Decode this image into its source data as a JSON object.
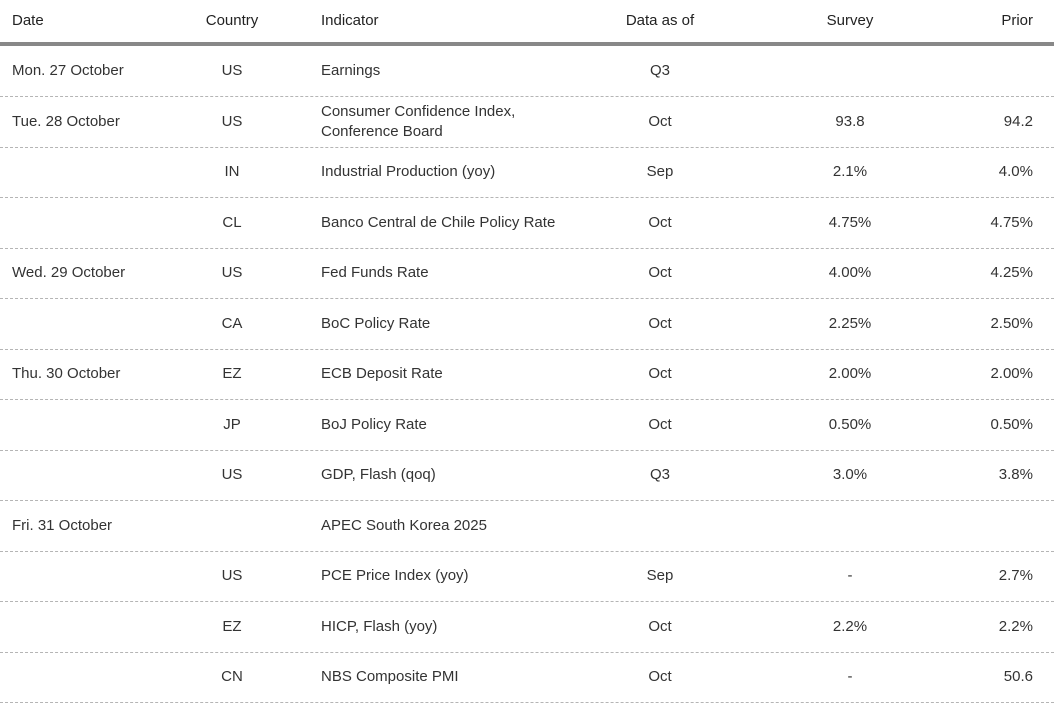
{
  "table": {
    "header": [
      "Date",
      "Country",
      "Indicator",
      "Data as of",
      "Survey",
      "Prior"
    ],
    "rows": [
      [
        "Mon. 27 October",
        "US",
        "Earnings",
        "Q3",
        null,
        null
      ],
      [
        "Tue. 28 October",
        "US",
        "Consumer Confidence Index,\nConference Board",
        "Oct",
        "93.8",
        "94.2"
      ],
      [
        null,
        "IN",
        "Industrial Production (yoy)",
        "Sep",
        "2.1%",
        "4.0%"
      ],
      [
        null,
        "CL",
        "Banco Central de Chile Policy Rate",
        "Oct",
        "4.75%",
        "4.75%"
      ],
      [
        "Wed. 29 October",
        "US",
        "Fed Funds Rate",
        "Oct",
        "4.00%",
        "4.25%"
      ],
      [
        null,
        "CA",
        "BoC Policy Rate",
        "Oct",
        "2.25%",
        "2.50%"
      ],
      [
        "Thu. 30 October",
        "EZ",
        "ECB Deposit Rate",
        "Oct",
        "2.00%",
        "2.00%"
      ],
      [
        null,
        "JP",
        "BoJ Policy Rate",
        "Oct",
        "0.50%",
        "0.50%"
      ],
      [
        null,
        "US",
        "GDP, Flash (qoq)",
        "Q3",
        "3.0%",
        "3.8%"
      ],
      [
        "Fri. 31 October",
        null,
        "APEC South Korea 2025",
        null,
        null,
        null
      ],
      [
        null,
        "US",
        "PCE Price Index (yoy)",
        "Sep",
        "-",
        "2.7%"
      ],
      [
        null,
        "EZ",
        "HICP, Flash (yoy)",
        "Oct",
        "2.2%",
        "2.2%"
      ],
      [
        null,
        "CN",
        "NBS Composite PMI",
        "Oct",
        "-",
        "50.6"
      ]
    ]
  }
}
